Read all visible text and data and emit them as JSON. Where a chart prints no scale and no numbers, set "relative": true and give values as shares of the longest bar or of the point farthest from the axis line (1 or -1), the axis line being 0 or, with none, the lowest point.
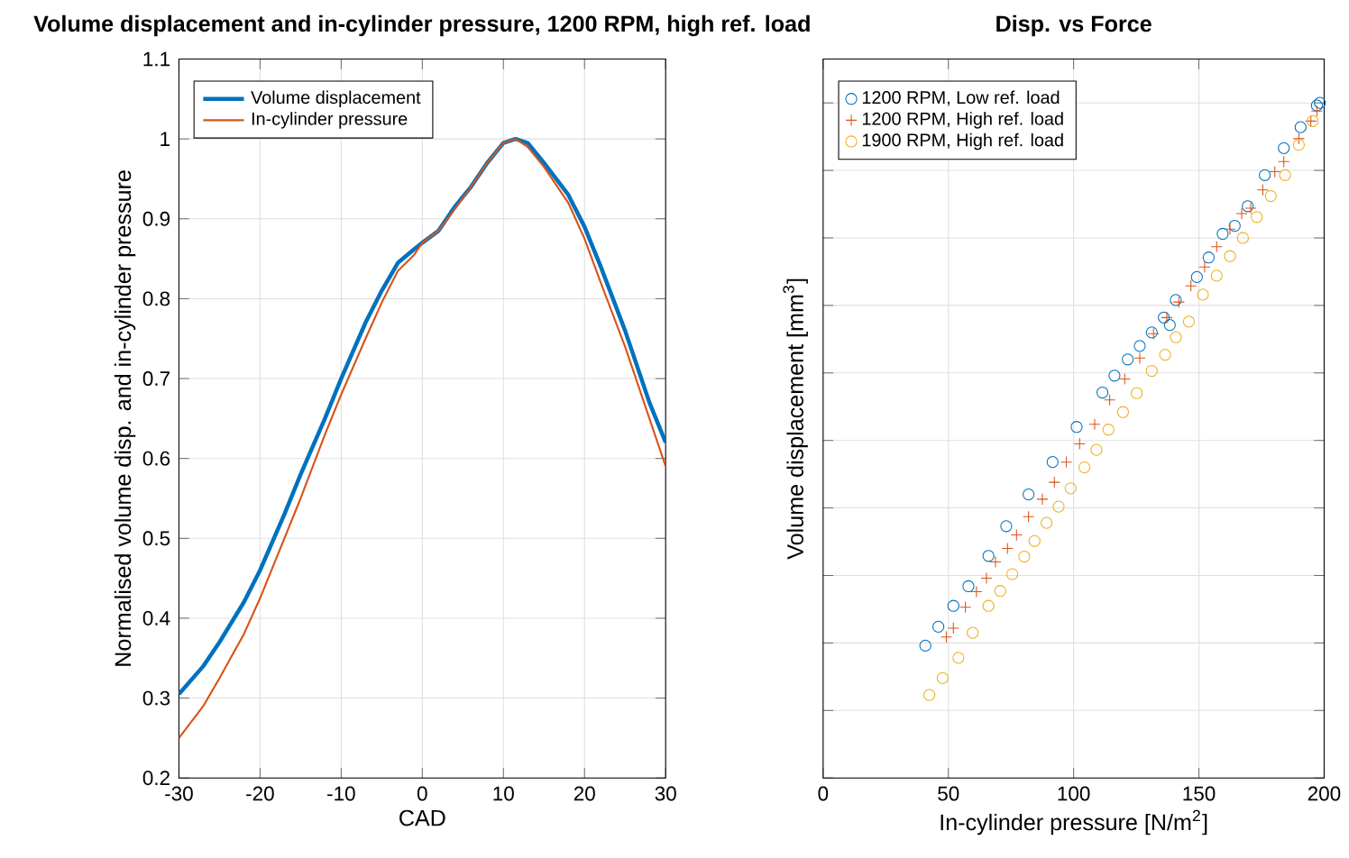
{
  "chart_data": [
    {
      "type": "line",
      "title": "Volume displacement and in-cylinder pressure, 1200 RPM, high ref. load",
      "xlabel": "CAD",
      "ylabel": "Normalised volume disp. and in-cylinder pressure",
      "xlim": [
        -30,
        30
      ],
      "xticks": [
        -30,
        -20,
        -10,
        0,
        10,
        20,
        30
      ],
      "ylim": [
        0.2,
        1.1
      ],
      "yticks": [
        0.2,
        0.3,
        0.4,
        0.5,
        0.6,
        0.7,
        0.8,
        0.9,
        1,
        1.1
      ],
      "grid": true,
      "legend": "top left",
      "series": [
        {
          "name": "Volume displacement",
          "color": "#0072bd",
          "x": [
            -30,
            -27,
            -25,
            -22,
            -20,
            -17,
            -15,
            -12,
            -10,
            -7,
            -5,
            -3,
            -1,
            0,
            2,
            4,
            6,
            8,
            10,
            11.5,
            13,
            15,
            18,
            20,
            22,
            25,
            28,
            30
          ],
          "values": [
            0.305,
            0.34,
            0.37,
            0.42,
            0.46,
            0.53,
            0.58,
            0.65,
            0.7,
            0.77,
            0.81,
            0.845,
            0.862,
            0.87,
            0.885,
            0.915,
            0.94,
            0.97,
            0.995,
            1.0,
            0.995,
            0.97,
            0.93,
            0.89,
            0.84,
            0.76,
            0.67,
            0.62
          ]
        },
        {
          "name": "In-cylinder pressure",
          "color": "#d95319",
          "x": [
            -30,
            -27,
            -25,
            -22,
            -20,
            -17,
            -15,
            -12,
            -10,
            -7,
            -5,
            -3,
            -1,
            0,
            2,
            4,
            6,
            8,
            10,
            11.5,
            13,
            15,
            18,
            20,
            22,
            25,
            28,
            30
          ],
          "values": [
            0.25,
            0.29,
            0.325,
            0.38,
            0.425,
            0.5,
            0.55,
            0.63,
            0.68,
            0.75,
            0.795,
            0.835,
            0.855,
            0.87,
            0.885,
            0.912,
            0.94,
            0.97,
            0.995,
            1.0,
            0.99,
            0.965,
            0.92,
            0.875,
            0.82,
            0.74,
            0.65,
            0.59
          ]
        }
      ]
    },
    {
      "type": "scatter",
      "title": "Disp. vs Force",
      "xlabel": "In-cylinder pressure [N/m$^{2}$]",
      "ylabel": "Volume displacement [mm$^{3}$]",
      "relative": true,
      "tick_labels": "x",
      "xlim": [
        0,
        200
      ],
      "xticks": [
        0,
        50,
        100,
        150,
        200
      ],
      "grid": true,
      "legend": "top left",
      "series": [
        {
          "name": "1200 RPM, Low ref. load",
          "color": "#0072bd",
          "marker": "circle",
          "x": [
            40.8,
            46,
            52,
            58,
            66,
            73.1,
            82,
            91.6,
            101.2,
            111.5,
            116.3,
            121.6,
            126.4,
            131.2,
            136,
            138.4,
            140.8,
            149.2,
            153.9,
            159.5,
            164.3,
            169.5,
            176.3,
            183.9,
            190.6,
            197.1,
            198.3
          ],
          "values": [
            0.196,
            0.224,
            0.255,
            0.284,
            0.329,
            0.373,
            0.42,
            0.468,
            0.52,
            0.571,
            0.596,
            0.62,
            0.64,
            0.66,
            0.682,
            0.671,
            0.708,
            0.742,
            0.771,
            0.806,
            0.818,
            0.847,
            0.893,
            0.933,
            0.964,
            0.996,
            1.0
          ]
        },
        {
          "name": "1200 RPM, High ref. load",
          "color": "#d95319",
          "marker": "cross",
          "x": [
            49.2,
            52,
            56.8,
            61.2,
            65.2,
            68.8,
            73.6,
            77.2,
            82,
            87.5,
            92.3,
            97.1,
            102.4,
            108.4,
            114.4,
            120.4,
            126.4,
            131.9,
            137.2,
            142,
            146.8,
            152.3,
            157.1,
            162.4,
            167.1,
            170.7,
            175.5,
            180.3,
            183.9,
            189.9,
            194.7,
            197.1
          ],
          "values": [
            0.209,
            0.222,
            0.253,
            0.276,
            0.296,
            0.32,
            0.34,
            0.36,
            0.387,
            0.413,
            0.438,
            0.468,
            0.495,
            0.524,
            0.56,
            0.591,
            0.622,
            0.658,
            0.682,
            0.705,
            0.729,
            0.757,
            0.787,
            0.813,
            0.836,
            0.844,
            0.871,
            0.898,
            0.913,
            0.947,
            0.973,
            0.988
          ]
        },
        {
          "name": "1900 RPM, High ref. load",
          "color": "#edb120",
          "marker": "circle",
          "x": [
            42.4,
            47.7,
            54,
            59.7,
            66,
            70.7,
            75.5,
            80.3,
            84.4,
            89.2,
            94,
            98.8,
            104.3,
            109.1,
            113.9,
            119.7,
            125.2,
            131.2,
            136.5,
            140.8,
            146,
            151.6,
            157.1,
            162.4,
            167.6,
            173.1,
            178.7,
            184.4,
            189.9,
            195.4
          ],
          "values": [
            0.123,
            0.148,
            0.178,
            0.215,
            0.255,
            0.277,
            0.302,
            0.328,
            0.351,
            0.378,
            0.402,
            0.429,
            0.46,
            0.486,
            0.516,
            0.542,
            0.57,
            0.603,
            0.627,
            0.653,
            0.676,
            0.716,
            0.744,
            0.773,
            0.8,
            0.831,
            0.862,
            0.893,
            0.938,
            0.973
          ]
        }
      ]
    }
  ]
}
